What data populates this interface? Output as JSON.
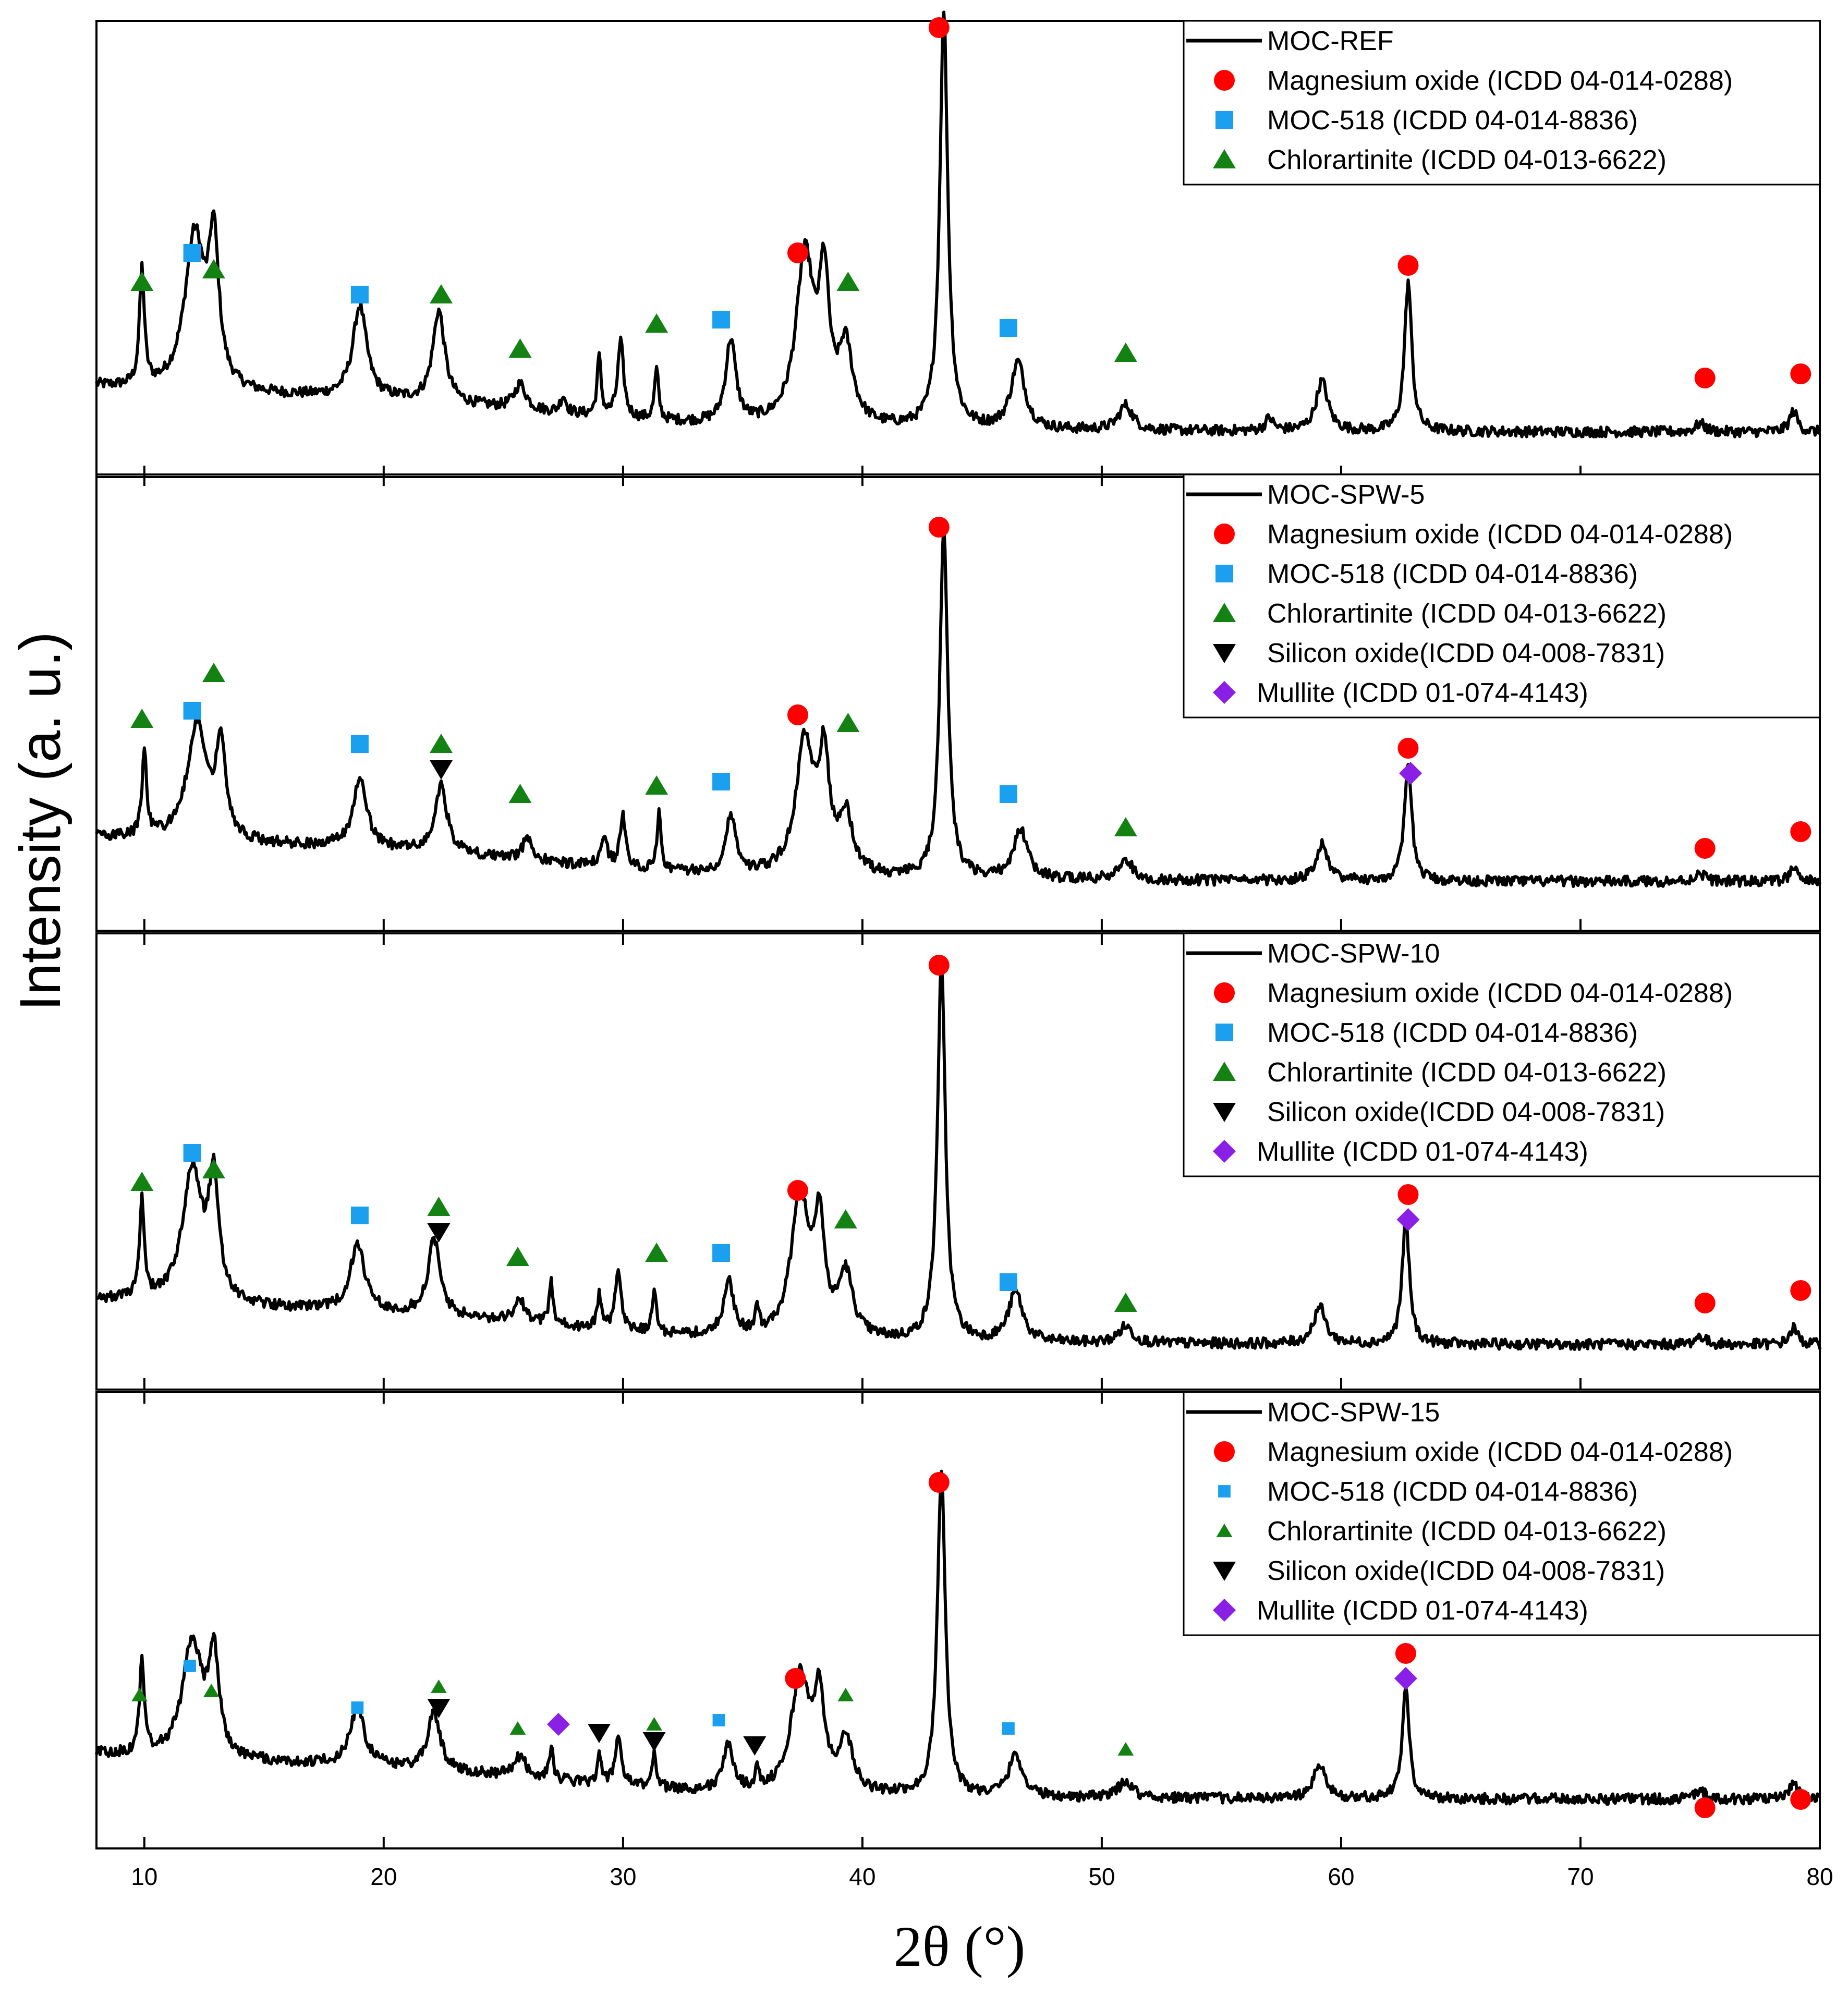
{
  "chart_data": {
    "type": "line",
    "title": "",
    "xlabel": "2θ (°)",
    "ylabel": "Intensity (a. u.)",
    "xlim": [
      8,
      80
    ],
    "xticks": [
      10,
      20,
      30,
      40,
      50,
      60,
      70,
      80
    ],
    "ylim": [
      0,
      1
    ],
    "grid": false,
    "colors": {
      "magnesium_oxide": "#ff0000",
      "moc518": "#1aa0ee",
      "chlorartinite": "#138213",
      "silicon_oxide": "#000000",
      "mullite": "#8a1fe6",
      "line": "#000000"
    },
    "panels": [
      {
        "name": "MOC-REF",
        "legend": [
          {
            "label": "MOC-REF",
            "marker": "line",
            "color": "#000000"
          },
          {
            "label": "Magnesium oxide (ICDD 04-014-0288)",
            "marker": "circle",
            "color": "#ff0000"
          },
          {
            "label": "MOC-518 (ICDD 04-014-8836)",
            "marker": "square",
            "color": "#1aa0ee"
          },
          {
            "label": "Chlorartinite (ICDD 04-013-6622)",
            "marker": "triangle-up",
            "color": "#138213"
          }
        ],
        "baseline": 0.07,
        "peaks": [
          [
            9.9,
            0.28,
            0.12
          ],
          [
            12.1,
            0.37,
            0.5
          ],
          [
            12.9,
            0.33,
            0.25
          ],
          [
            19.0,
            0.22,
            0.35
          ],
          [
            22.3,
            0.22,
            0.3
          ],
          [
            25.7,
            0.06,
            0.3
          ],
          [
            27.5,
            0.04,
            0.15
          ],
          [
            29.0,
            0.14,
            0.1
          ],
          [
            29.9,
            0.18,
            0.15
          ],
          [
            31.4,
            0.12,
            0.1
          ],
          [
            34.5,
            0.2,
            0.25
          ],
          [
            37.6,
            0.4,
            0.45
          ],
          [
            38.4,
            0.32,
            0.25
          ],
          [
            39.3,
            0.18,
            0.35
          ],
          [
            43.4,
            1.0,
            0.2
          ],
          [
            46.5,
            0.16,
            0.35
          ],
          [
            51.0,
            0.06,
            0.35
          ],
          [
            57.0,
            0.03,
            0.2
          ],
          [
            59.2,
            0.12,
            0.3
          ],
          [
            62.8,
            0.36,
            0.18
          ],
          [
            75.0,
            0.02,
            0.25
          ],
          [
            78.9,
            0.05,
            0.2
          ]
        ],
        "markers": [
          {
            "phase": "chlorartinite",
            "x": 9.9,
            "y": 0.43
          },
          {
            "phase": "moc518",
            "x": 12.0,
            "y": 0.5
          },
          {
            "phase": "chlorartinite",
            "x": 12.9,
            "y": 0.46
          },
          {
            "phase": "moc518",
            "x": 19.0,
            "y": 0.4
          },
          {
            "phase": "chlorartinite",
            "x": 22.4,
            "y": 0.4
          },
          {
            "phase": "chlorartinite",
            "x": 25.7,
            "y": 0.27
          },
          {
            "phase": "chlorartinite",
            "x": 31.4,
            "y": 0.33
          },
          {
            "phase": "moc518",
            "x": 34.1,
            "y": 0.34
          },
          {
            "phase": "magnesium_oxide",
            "x": 37.3,
            "y": 0.5
          },
          {
            "phase": "chlorartinite",
            "x": 39.4,
            "y": 0.43
          },
          {
            "phase": "magnesium_oxide",
            "x": 43.2,
            "y": 1.04
          },
          {
            "phase": "moc518",
            "x": 46.1,
            "y": 0.32
          },
          {
            "phase": "chlorartinite",
            "x": 51.0,
            "y": 0.26
          },
          {
            "phase": "magnesium_oxide",
            "x": 62.8,
            "y": 0.47
          },
          {
            "phase": "magnesium_oxide",
            "x": 75.2,
            "y": 0.2
          },
          {
            "phase": "magnesium_oxide",
            "x": 79.2,
            "y": 0.21
          }
        ]
      },
      {
        "name": "MOC-SPW-5",
        "legend": [
          {
            "label": "MOC-SPW-5",
            "marker": "line",
            "color": "#000000"
          },
          {
            "label": "Magnesium oxide (ICDD 04-014-0288)",
            "marker": "circle",
            "color": "#ff0000"
          },
          {
            "label": "MOC-518 (ICDD 04-014-8836)",
            "marker": "square",
            "color": "#1aa0ee"
          },
          {
            "label": "Chlorartinite (ICDD 04-013-6622)",
            "marker": "triangle-up",
            "color": "#138213"
          },
          {
            "label": "Silicon oxide(ICDD 04-008-7831)",
            "marker": "triangle-down",
            "color": "#000000"
          },
          {
            "label": "Mullite (ICDD 01-074-4143)",
            "marker": "diamond",
            "color": "#8a1fe6"
          }
        ],
        "baseline": 0.08,
        "peaks": [
          [
            10.0,
            0.2,
            0.12
          ],
          [
            12.2,
            0.28,
            0.5
          ],
          [
            13.2,
            0.22,
            0.25
          ],
          [
            19.0,
            0.16,
            0.35
          ],
          [
            22.4,
            0.16,
            0.3
          ],
          [
            26.0,
            0.06,
            0.2
          ],
          [
            29.2,
            0.07,
            0.15
          ],
          [
            30.0,
            0.12,
            0.15
          ],
          [
            31.5,
            0.14,
            0.1
          ],
          [
            34.5,
            0.14,
            0.25
          ],
          [
            37.6,
            0.32,
            0.45
          ],
          [
            38.4,
            0.26,
            0.25
          ],
          [
            39.3,
            0.14,
            0.35
          ],
          [
            43.4,
            0.84,
            0.2
          ],
          [
            46.6,
            0.12,
            0.35
          ],
          [
            51.0,
            0.05,
            0.35
          ],
          [
            59.2,
            0.09,
            0.3
          ],
          [
            62.8,
            0.28,
            0.18
          ],
          [
            75.0,
            0.02,
            0.25
          ],
          [
            78.9,
            0.03,
            0.2
          ]
        ],
        "markers": [
          {
            "phase": "chlorartinite",
            "x": 9.9,
            "y": 0.47
          },
          {
            "phase": "moc518",
            "x": 12.0,
            "y": 0.49
          },
          {
            "phase": "chlorartinite",
            "x": 12.9,
            "y": 0.58
          },
          {
            "phase": "moc518",
            "x": 19.0,
            "y": 0.41
          },
          {
            "phase": "chlorartinite",
            "x": 22.4,
            "y": 0.41
          },
          {
            "phase": "silicon_oxide",
            "x": 22.4,
            "y": 0.35
          },
          {
            "phase": "chlorartinite",
            "x": 25.7,
            "y": 0.29
          },
          {
            "phase": "chlorartinite",
            "x": 31.4,
            "y": 0.31
          },
          {
            "phase": "moc518",
            "x": 34.1,
            "y": 0.32
          },
          {
            "phase": "magnesium_oxide",
            "x": 37.3,
            "y": 0.48
          },
          {
            "phase": "chlorartinite",
            "x": 39.4,
            "y": 0.46
          },
          {
            "phase": "magnesium_oxide",
            "x": 43.2,
            "y": 0.93
          },
          {
            "phase": "moc518",
            "x": 46.1,
            "y": 0.29
          },
          {
            "phase": "chlorartinite",
            "x": 51.0,
            "y": 0.21
          },
          {
            "phase": "magnesium_oxide",
            "x": 62.8,
            "y": 0.4
          },
          {
            "phase": "mullite",
            "x": 62.9,
            "y": 0.34
          },
          {
            "phase": "magnesium_oxide",
            "x": 75.2,
            "y": 0.16
          },
          {
            "phase": "magnesium_oxide",
            "x": 79.2,
            "y": 0.2
          }
        ]
      },
      {
        "name": "MOC-SPW-10",
        "legend": [
          {
            "label": "MOC-SPW-10",
            "marker": "line",
            "color": "#000000"
          },
          {
            "label": "Magnesium oxide (ICDD 04-014-0288)",
            "marker": "circle",
            "color": "#ff0000"
          },
          {
            "label": "MOC-518 (ICDD 04-014-8836)",
            "marker": "square",
            "color": "#1aa0ee"
          },
          {
            "label": "Chlorartinite (ICDD 04-013-6622)",
            "marker": "triangle-up",
            "color": "#138213"
          },
          {
            "label": "Silicon oxide(ICDD 04-008-7831)",
            "marker": "triangle-down",
            "color": "#000000"
          },
          {
            "label": "Mullite (ICDD 01-074-4143)",
            "marker": "diamond",
            "color": "#8a1fe6"
          }
        ],
        "baseline": 0.07,
        "peaks": [
          [
            9.9,
            0.24,
            0.12
          ],
          [
            12.0,
            0.32,
            0.5
          ],
          [
            12.9,
            0.28,
            0.25
          ],
          [
            18.9,
            0.16,
            0.35
          ],
          [
            22.1,
            0.18,
            0.3
          ],
          [
            25.7,
            0.05,
            0.3
          ],
          [
            27.0,
            0.1,
            0.1
          ],
          [
            29.0,
            0.08,
            0.1
          ],
          [
            29.8,
            0.14,
            0.15
          ],
          [
            31.3,
            0.1,
            0.1
          ],
          [
            34.4,
            0.13,
            0.25
          ],
          [
            35.6,
            0.05,
            0.1
          ],
          [
            37.4,
            0.34,
            0.45
          ],
          [
            38.2,
            0.26,
            0.25
          ],
          [
            39.3,
            0.15,
            0.35
          ],
          [
            43.3,
            0.9,
            0.2
          ],
          [
            46.4,
            0.12,
            0.35
          ],
          [
            51.0,
            0.04,
            0.35
          ],
          [
            59.1,
            0.09,
            0.3
          ],
          [
            62.7,
            0.3,
            0.18
          ],
          [
            75.0,
            0.02,
            0.25
          ],
          [
            78.9,
            0.04,
            0.2
          ]
        ],
        "markers": [
          {
            "phase": "chlorartinite",
            "x": 9.9,
            "y": 0.46
          },
          {
            "phase": "moc518",
            "x": 12.0,
            "y": 0.53
          },
          {
            "phase": "chlorartinite",
            "x": 12.9,
            "y": 0.49
          },
          {
            "phase": "moc518",
            "x": 19.0,
            "y": 0.38
          },
          {
            "phase": "chlorartinite",
            "x": 22.3,
            "y": 0.4
          },
          {
            "phase": "silicon_oxide",
            "x": 22.3,
            "y": 0.34
          },
          {
            "phase": "chlorartinite",
            "x": 25.6,
            "y": 0.28
          },
          {
            "phase": "chlorartinite",
            "x": 31.4,
            "y": 0.29
          },
          {
            "phase": "moc518",
            "x": 34.1,
            "y": 0.29
          },
          {
            "phase": "magnesium_oxide",
            "x": 37.3,
            "y": 0.44
          },
          {
            "phase": "chlorartinite",
            "x": 39.3,
            "y": 0.37
          },
          {
            "phase": "magnesium_oxide",
            "x": 43.2,
            "y": 0.98
          },
          {
            "phase": "moc518",
            "x": 46.1,
            "y": 0.22
          },
          {
            "phase": "chlorartinite",
            "x": 51.0,
            "y": 0.17
          },
          {
            "phase": "magnesium_oxide",
            "x": 62.8,
            "y": 0.43
          },
          {
            "phase": "mullite",
            "x": 62.8,
            "y": 0.37
          },
          {
            "phase": "magnesium_oxide",
            "x": 75.2,
            "y": 0.17
          },
          {
            "phase": "magnesium_oxide",
            "x": 79.2,
            "y": 0.2
          }
        ]
      },
      {
        "name": "MOC-SPW-15",
        "legend": [
          {
            "label": "MOC-SPW-15",
            "marker": "line",
            "color": "#000000"
          },
          {
            "label": "Magnesium oxide (ICDD 04-014-0288)",
            "marker": "circle",
            "color": "#ff0000"
          },
          {
            "label": "MOC-518 (ICDD 04-014-8836)",
            "marker": "square",
            "color": "#1aa0ee"
          },
          {
            "label": "Chlorartinite (ICDD 04-013-6622)",
            "marker": "triangle-up",
            "color": "#138213"
          },
          {
            "label": "Silicon oxide(ICDD 04-008-7831)",
            "marker": "triangle-down",
            "color": "#000000"
          },
          {
            "label": "Mullite (ICDD 01-074-4143)",
            "marker": "diamond",
            "color": "#8a1fe6"
          }
        ],
        "baseline": 0.08,
        "peaks": [
          [
            9.9,
            0.22,
            0.12
          ],
          [
            12.0,
            0.28,
            0.5
          ],
          [
            12.9,
            0.24,
            0.25
          ],
          [
            18.9,
            0.14,
            0.35
          ],
          [
            22.1,
            0.14,
            0.3
          ],
          [
            25.7,
            0.05,
            0.3
          ],
          [
            27.0,
            0.08,
            0.1
          ],
          [
            29.0,
            0.07,
            0.1
          ],
          [
            29.8,
            0.12,
            0.15
          ],
          [
            31.3,
            0.09,
            0.1
          ],
          [
            34.4,
            0.11,
            0.25
          ],
          [
            35.6,
            0.04,
            0.1
          ],
          [
            37.4,
            0.28,
            0.45
          ],
          [
            38.2,
            0.22,
            0.25
          ],
          [
            39.3,
            0.13,
            0.35
          ],
          [
            43.3,
            0.78,
            0.2
          ],
          [
            46.4,
            0.1,
            0.35
          ],
          [
            51.0,
            0.04,
            0.35
          ],
          [
            59.1,
            0.08,
            0.3
          ],
          [
            62.7,
            0.26,
            0.18
          ],
          [
            75.0,
            0.02,
            0.25
          ],
          [
            78.9,
            0.04,
            0.2
          ]
        ],
        "markers": [
          {
            "phase": "chlorartinite",
            "x": 9.8,
            "y": 0.33
          },
          {
            "phase": "moc518",
            "x": 11.9,
            "y": 0.4
          },
          {
            "phase": "chlorartinite",
            "x": 12.8,
            "y": 0.34
          },
          {
            "phase": "moc518",
            "x": 18.9,
            "y": 0.3
          },
          {
            "phase": "chlorartinite",
            "x": 22.3,
            "y": 0.35
          },
          {
            "phase": "silicon_oxide",
            "x": 22.3,
            "y": 0.3
          },
          {
            "phase": "chlorartinite",
            "x": 25.6,
            "y": 0.25
          },
          {
            "phase": "mullite",
            "x": 27.3,
            "y": 0.26
          },
          {
            "phase": "silicon_oxide",
            "x": 29.0,
            "y": 0.24
          },
          {
            "phase": "silicon_oxide",
            "x": 31.3,
            "y": 0.22
          },
          {
            "phase": "chlorartinite",
            "x": 31.3,
            "y": 0.26
          },
          {
            "phase": "moc518",
            "x": 34.0,
            "y": 0.27
          },
          {
            "phase": "silicon_oxide",
            "x": 35.5,
            "y": 0.21
          },
          {
            "phase": "magnesium_oxide",
            "x": 37.2,
            "y": 0.37
          },
          {
            "phase": "chlorartinite",
            "x": 39.3,
            "y": 0.33
          },
          {
            "phase": "magnesium_oxide",
            "x": 43.2,
            "y": 0.84
          },
          {
            "phase": "moc518",
            "x": 46.1,
            "y": 0.25
          },
          {
            "phase": "chlorartinite",
            "x": 51.0,
            "y": 0.2
          },
          {
            "phase": "magnesium_oxide",
            "x": 62.7,
            "y": 0.43
          },
          {
            "phase": "mullite",
            "x": 62.7,
            "y": 0.37
          },
          {
            "phase": "magnesium_oxide",
            "x": 75.2,
            "y": 0.06
          },
          {
            "phase": "magnesium_oxide",
            "x": 79.2,
            "y": 0.08
          }
        ]
      }
    ]
  }
}
